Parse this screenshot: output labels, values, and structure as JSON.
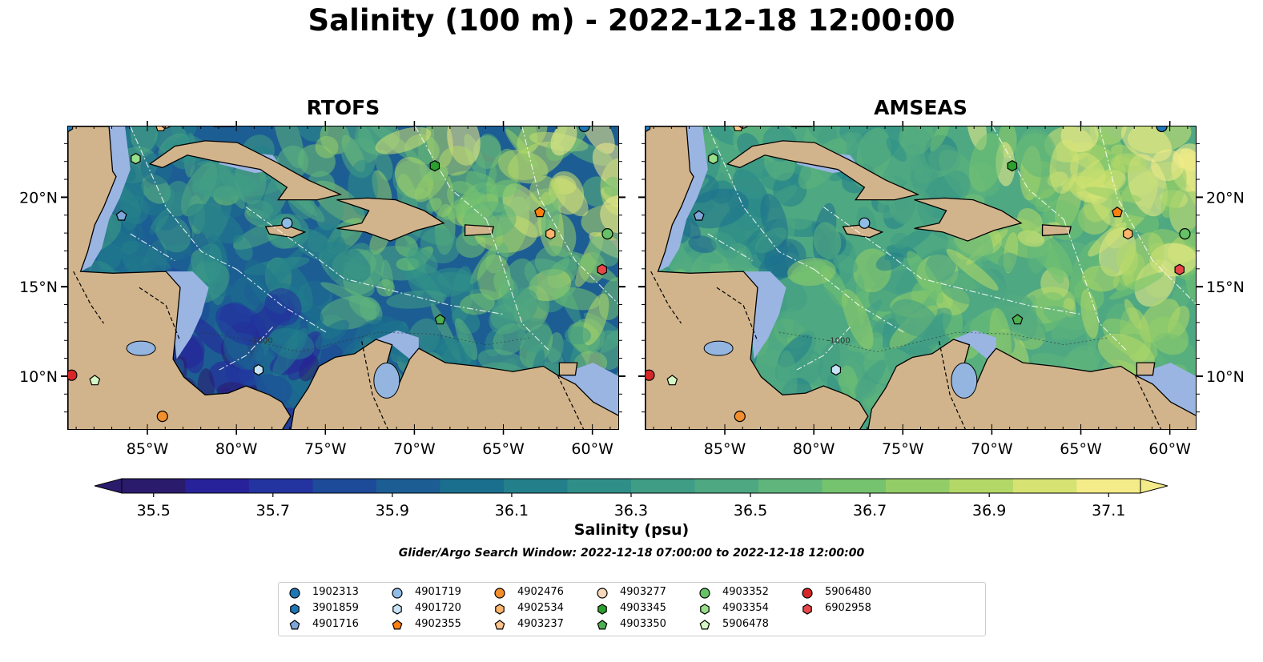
{
  "figure": {
    "title": "Salinity (100 m) - 2022-12-18 12:00:00",
    "panels": [
      {
        "title": "RTOFS",
        "model": "rtofs"
      },
      {
        "title": "AMSEAS",
        "model": "amseas"
      }
    ],
    "longitude_ticks": [
      "85°W",
      "80°W",
      "75°W",
      "70°W",
      "65°W",
      "60°W"
    ],
    "latitude_ticks": [
      "20°N",
      "15°N",
      "10°N"
    ],
    "extent": {
      "lon_min": -89.5,
      "lon_max": -58.5,
      "lat_min": 7,
      "lat_max": 24
    },
    "contour_label": "-1000"
  },
  "colorbar": {
    "label": "Salinity (psu)",
    "min": 35.5,
    "max": 37.1,
    "step": 0.1,
    "extend": "both",
    "tick_labels": [
      "35.5",
      "35.7",
      "35.9",
      "36.1",
      "36.3",
      "36.5",
      "36.7",
      "36.9",
      "37.1"
    ],
    "colors": [
      "#2b1b6c",
      "#27229a",
      "#2333a0",
      "#1e4a9a",
      "#1c5e93",
      "#1b6f8e",
      "#23808b",
      "#2f8f88",
      "#3f9c85",
      "#4ea882",
      "#5fb57c",
      "#75c26f",
      "#93cd67",
      "#b4d868",
      "#d6e373",
      "#f4ec88"
    ],
    "land_color": "#d2b48c",
    "coast_color": "#9bb5e3"
  },
  "search_window": "Glider/Argo Search Window: 2022-12-18 07:00:00 to 2022-12-18 12:00:00",
  "platforms": [
    {
      "id": "1902313",
      "marker": "circle",
      "color": "#1f77b4",
      "lon": -60.5,
      "lat": 24.0
    },
    {
      "id": "3901859",
      "marker": "hexagon",
      "color": "#1f77b4",
      "lon": -89.5,
      "lat": 24.0
    },
    {
      "id": "4901716",
      "marker": "pentagon",
      "color": "#7ea6d9",
      "lon": -86.5,
      "lat": 19.0
    },
    {
      "id": "4901719",
      "marker": "circle",
      "color": "#8fbde8",
      "lon": -77.2,
      "lat": 18.6
    },
    {
      "id": "4901720",
      "marker": "hexagon",
      "color": "#c7e4f7",
      "lon": -78.8,
      "lat": 10.4
    },
    {
      "id": "4902355",
      "marker": "pentagon",
      "color": "#ff7f0e",
      "lon": -63.0,
      "lat": 19.2
    },
    {
      "id": "4902476",
      "marker": "circle",
      "color": "#f28e2b",
      "lon": -84.2,
      "lat": 7.8
    },
    {
      "id": "4902534",
      "marker": "hexagon",
      "color": "#ffb46b",
      "lon": -62.4,
      "lat": 18.0
    },
    {
      "id": "4903237",
      "marker": "pentagon",
      "color": "#ffc48a",
      "lon": -84.3,
      "lat": 24.0
    },
    {
      "id": "4903277",
      "marker": "circle",
      "color": "#f8d8bc",
      "lon": -84.0,
      "lat": 24.2
    },
    {
      "id": "4903345",
      "marker": "hexagon",
      "color": "#2ca02c",
      "lon": -68.9,
      "lat": 21.8
    },
    {
      "id": "4903350",
      "marker": "pentagon",
      "color": "#4caf50",
      "lon": -68.6,
      "lat": 13.2
    },
    {
      "id": "4903352",
      "marker": "circle",
      "color": "#66c266",
      "lon": -59.2,
      "lat": 18.0
    },
    {
      "id": "4903354",
      "marker": "hexagon",
      "color": "#98df8a",
      "lon": -85.7,
      "lat": 22.2
    },
    {
      "id": "5906478",
      "marker": "pentagon",
      "color": "#d4f7c4",
      "lon": -88.0,
      "lat": 9.8
    },
    {
      "id": "5906480",
      "marker": "circle",
      "color": "#d62728",
      "lon": -89.3,
      "lat": 10.1
    },
    {
      "id": "6902958",
      "marker": "hexagon",
      "color": "#e8474a",
      "lon": -59.5,
      "lat": 16.0
    }
  ]
}
